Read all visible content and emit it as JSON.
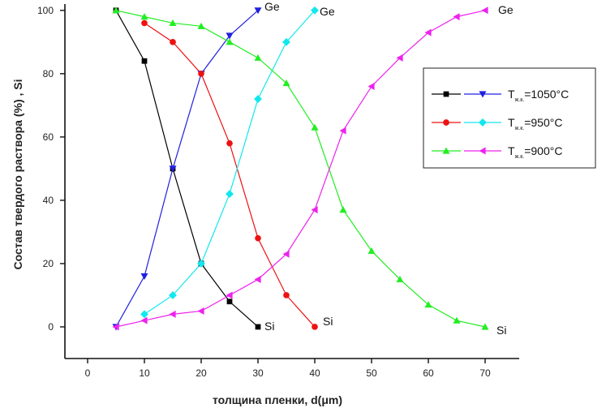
{
  "chart_data": {
    "type": "line",
    "title": "",
    "xlabel": "толщина пленки, d(μm)",
    "ylabel": "Состав твердого раствора (%) , Si",
    "xlim": [
      -4,
      76
    ],
    "ylim": [
      -10,
      102
    ],
    "xticks": [
      0,
      10,
      20,
      30,
      40,
      50,
      60,
      70
    ],
    "yticks": [
      0,
      20,
      40,
      60,
      80,
      100
    ],
    "grid": false,
    "legend_position": "top-right",
    "legend": [
      {
        "prefix": "T",
        "sub": "ж.к.",
        "suffix": "=1050°C",
        "series": [
          "si_1050",
          "ge_1050"
        ]
      },
      {
        "prefix": "T",
        "sub": "ж.к.",
        "suffix": "=950°C",
        "series": [
          "si_950",
          "ge_950"
        ]
      },
      {
        "prefix": "T",
        "sub": "ж.к.",
        "suffix": "=900°C",
        "series": [
          "si_900",
          "ge_900"
        ]
      }
    ],
    "series": [
      {
        "id": "si_1050",
        "color": "#000000",
        "marker": "square",
        "end_label": "Si",
        "x": [
          5,
          10,
          15,
          20,
          25,
          30
        ],
        "y": [
          100,
          84,
          50,
          20,
          8,
          0
        ]
      },
      {
        "id": "ge_1050",
        "color": "#2020e0",
        "marker": "triangle-down",
        "end_label": "Ge",
        "x": [
          5,
          10,
          15,
          20,
          25,
          30
        ],
        "y": [
          0,
          16,
          50,
          80,
          92,
          100
        ]
      },
      {
        "id": "si_950",
        "color": "#ee1111",
        "marker": "circle",
        "end_label": "Si",
        "x": [
          10,
          15,
          20,
          25,
          30,
          35,
          40
        ],
        "y": [
          96,
          90,
          80,
          58,
          28,
          10,
          0
        ]
      },
      {
        "id": "ge_950",
        "color": "#11e8ee",
        "marker": "diamond",
        "end_label": "Ge",
        "x": [
          10,
          15,
          20,
          25,
          30,
          35,
          40
        ],
        "y": [
          4,
          10,
          20,
          42,
          72,
          90,
          100
        ]
      },
      {
        "id": "si_900",
        "color": "#22ee22",
        "marker": "triangle-up",
        "end_label": "Si",
        "x": [
          5,
          10,
          15,
          20,
          25,
          30,
          35,
          40,
          45,
          50,
          55,
          60,
          65,
          70
        ],
        "y": [
          100,
          98,
          96,
          95,
          90,
          85,
          77,
          63,
          37,
          24,
          15,
          7,
          2,
          0
        ]
      },
      {
        "id": "ge_900",
        "color": "#ee22ee",
        "marker": "triangle-left",
        "end_label": "Ge",
        "x": [
          5,
          10,
          15,
          20,
          25,
          30,
          35,
          40,
          45,
          50,
          55,
          60,
          65,
          70
        ],
        "y": [
          0,
          2,
          4,
          5,
          10,
          15,
          23,
          37,
          62,
          76,
          85,
          93,
          98,
          100
        ]
      }
    ]
  }
}
